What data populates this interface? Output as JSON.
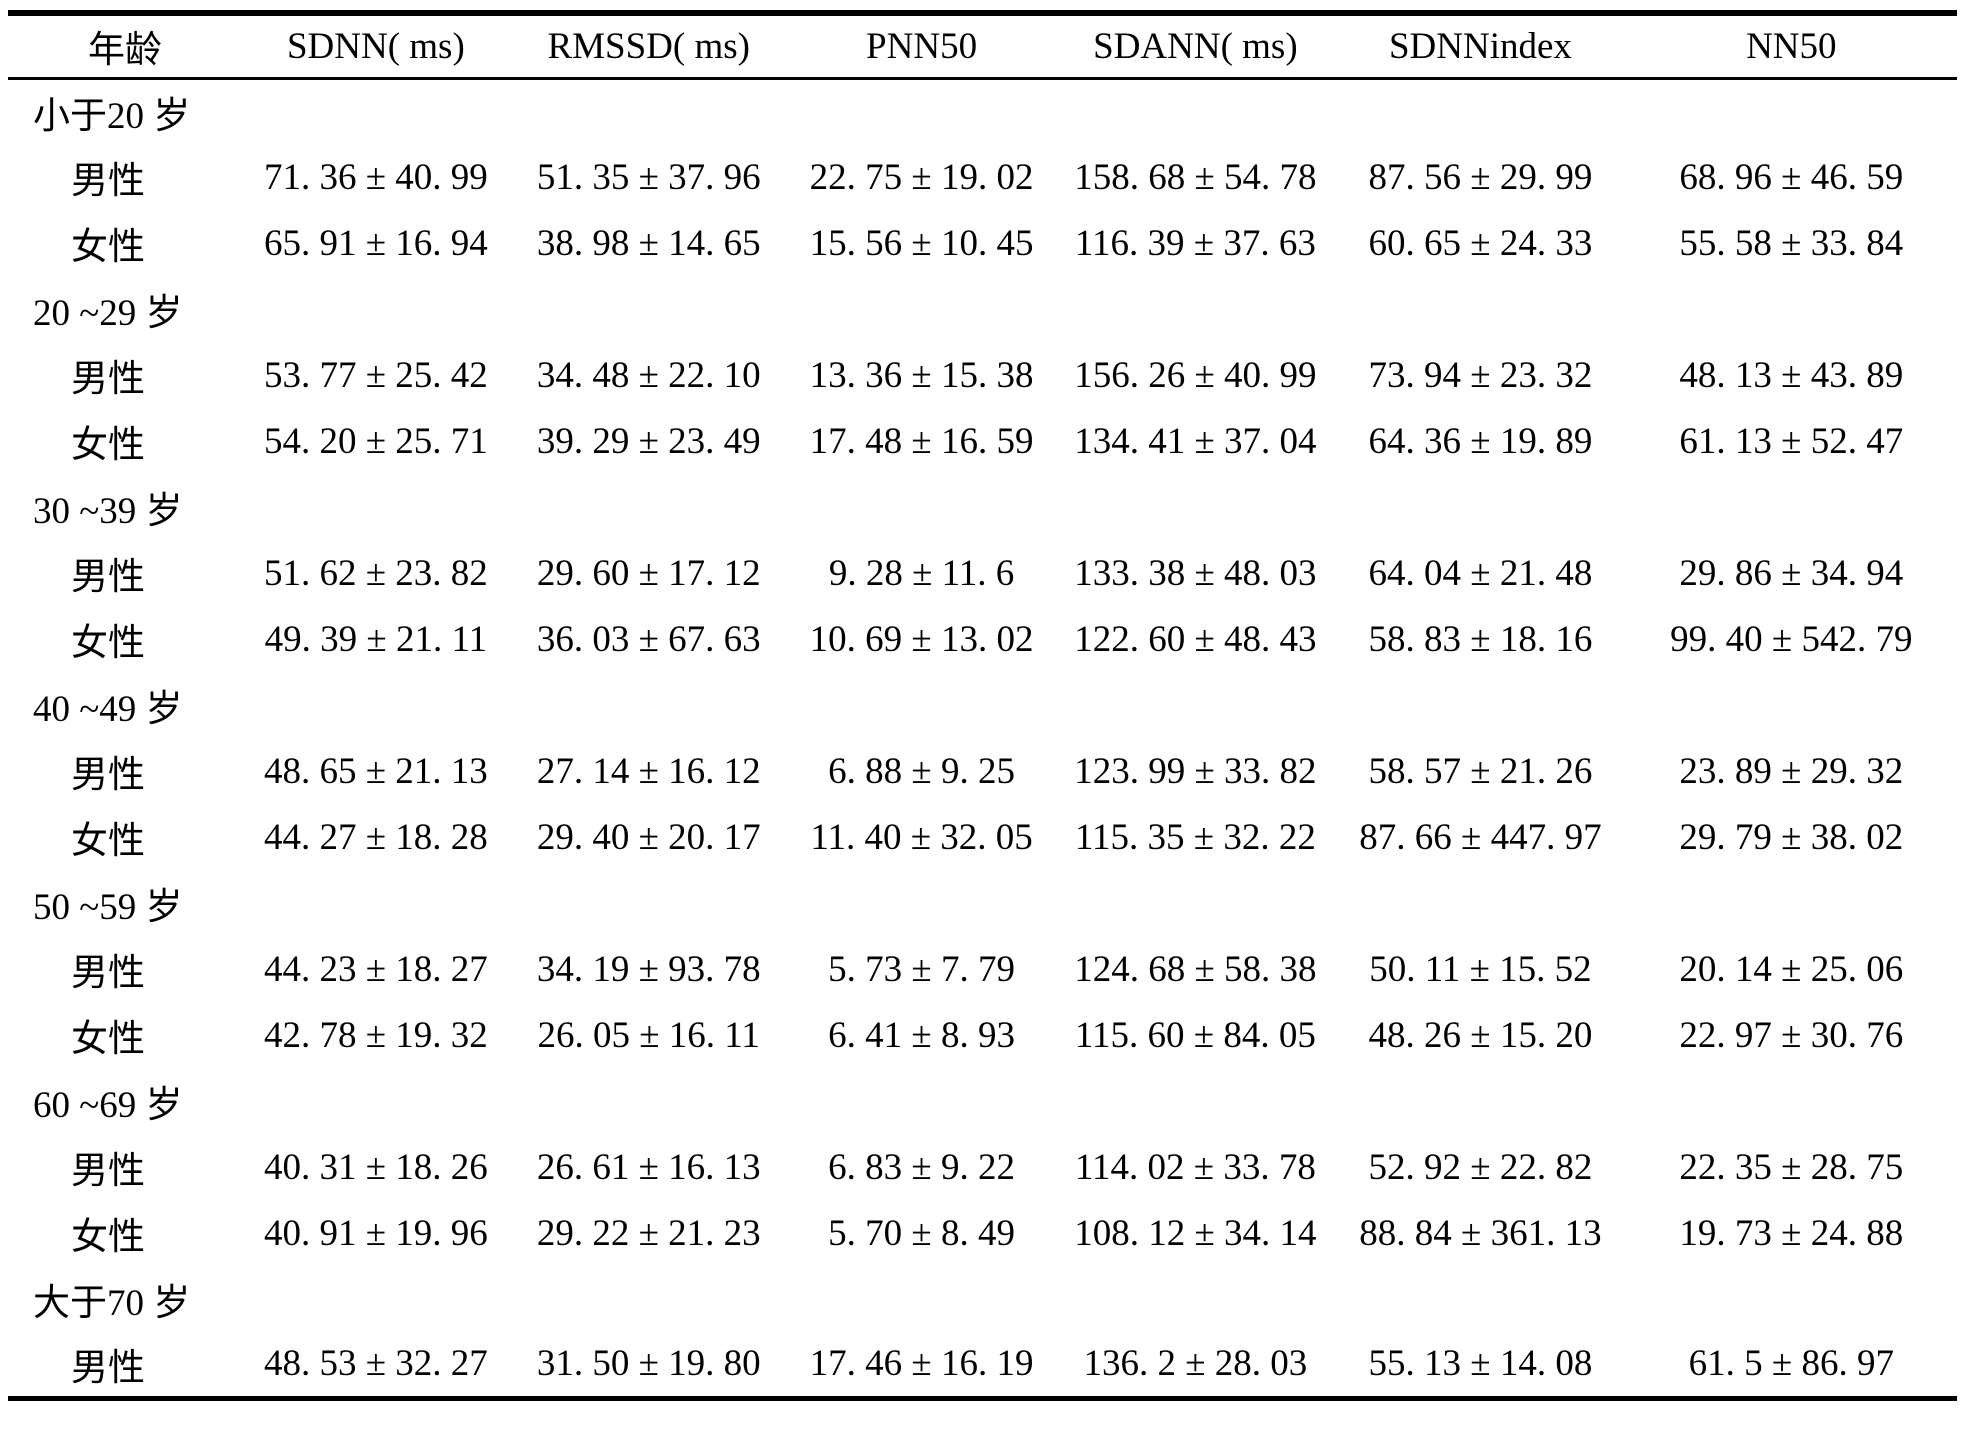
{
  "table": {
    "columns": [
      "年龄",
      "SDNN( ms)",
      "RMSSD( ms)",
      "PNN50",
      "SDANN( ms)",
      "SDNNindex",
      "NN50"
    ],
    "rows": [
      {
        "kind": "group",
        "label": "小于20 岁",
        "values": [
          "",
          "",
          "",
          "",
          "",
          ""
        ]
      },
      {
        "kind": "data",
        "label": "男性",
        "values": [
          "71. 36 ± 40. 99",
          "51. 35 ± 37. 96",
          "22. 75 ± 19. 02",
          "158. 68 ± 54. 78",
          "87. 56 ± 29. 99",
          "68. 96 ± 46. 59"
        ]
      },
      {
        "kind": "data",
        "label": "女性",
        "values": [
          "65. 91 ± 16. 94",
          "38. 98 ± 14. 65",
          "15. 56 ± 10. 45",
          "116. 39 ± 37. 63",
          "60. 65 ± 24. 33",
          "55. 58 ± 33. 84"
        ]
      },
      {
        "kind": "group",
        "label": "20 ~29 岁",
        "values": [
          "",
          "",
          "",
          "",
          "",
          ""
        ]
      },
      {
        "kind": "data",
        "label": "男性",
        "values": [
          "53. 77 ± 25. 42",
          "34. 48 ± 22. 10",
          "13. 36 ± 15. 38",
          "156. 26 ± 40. 99",
          "73. 94 ± 23. 32",
          "48. 13 ± 43. 89"
        ]
      },
      {
        "kind": "data",
        "label": "女性",
        "values": [
          "54. 20 ± 25. 71",
          "39. 29 ± 23. 49",
          "17. 48 ± 16. 59",
          "134. 41 ± 37. 04",
          "64. 36 ± 19. 89",
          "61. 13 ± 52. 47"
        ]
      },
      {
        "kind": "group",
        "label": "30 ~39 岁",
        "values": [
          "",
          "",
          "",
          "",
          "",
          ""
        ]
      },
      {
        "kind": "data",
        "label": "男性",
        "values": [
          "51. 62 ± 23. 82",
          "29. 60 ± 17. 12",
          "9. 28 ± 11. 6",
          "133. 38 ± 48. 03",
          "64. 04 ± 21. 48",
          "29. 86 ± 34. 94"
        ]
      },
      {
        "kind": "data",
        "label": "女性",
        "values": [
          "49. 39 ± 21. 11",
          "36. 03 ± 67. 63",
          "10. 69 ± 13. 02",
          "122. 60 ± 48. 43",
          "58. 83 ± 18. 16",
          "99. 40 ± 542. 79"
        ]
      },
      {
        "kind": "group",
        "label": "40 ~49 岁",
        "values": [
          "",
          "",
          "",
          "",
          "",
          ""
        ]
      },
      {
        "kind": "data",
        "label": "男性",
        "values": [
          "48. 65 ± 21. 13",
          "27. 14 ± 16. 12",
          "6. 88 ± 9. 25",
          "123. 99 ± 33. 82",
          "58. 57 ± 21. 26",
          "23. 89 ± 29. 32"
        ]
      },
      {
        "kind": "data",
        "label": "女性",
        "values": [
          "44. 27 ± 18. 28",
          "29. 40 ± 20. 17",
          "11. 40 ± 32. 05",
          "115. 35 ± 32. 22",
          "87. 66 ± 447. 97",
          "29. 79 ± 38. 02"
        ]
      },
      {
        "kind": "group",
        "label": "50 ~59 岁",
        "values": [
          "",
          "",
          "",
          "",
          "",
          ""
        ]
      },
      {
        "kind": "data",
        "label": "男性",
        "values": [
          "44. 23 ± 18. 27",
          "34. 19 ± 93. 78",
          "5. 73 ± 7. 79",
          "124. 68 ± 58. 38",
          "50. 11 ± 15. 52",
          "20. 14 ± 25. 06"
        ]
      },
      {
        "kind": "data",
        "label": "女性",
        "values": [
          "42. 78 ± 19. 32",
          "26. 05 ± 16. 11",
          "6. 41 ± 8. 93",
          "115. 60 ± 84. 05",
          "48. 26 ± 15. 20",
          "22. 97 ± 30. 76"
        ]
      },
      {
        "kind": "group",
        "label": "60 ~69 岁",
        "values": [
          "",
          "",
          "",
          "",
          "",
          ""
        ]
      },
      {
        "kind": "data",
        "label": "男性",
        "values": [
          "40. 31 ± 18. 26",
          "26. 61 ± 16. 13",
          "6. 83 ± 9. 22",
          "114. 02 ± 33. 78",
          "52. 92 ± 22. 82",
          "22. 35 ± 28. 75"
        ]
      },
      {
        "kind": "data",
        "label": "女性",
        "values": [
          "40. 91 ± 19. 96",
          "29. 22 ± 21. 23",
          "5. 70 ± 8. 49",
          "108. 12 ± 34. 14",
          "88. 84 ± 361. 13",
          "19. 73 ± 24. 88"
        ]
      },
      {
        "kind": "group",
        "label": "大于70 岁",
        "values": [
          "",
          "",
          "",
          "",
          "",
          ""
        ]
      },
      {
        "kind": "data",
        "label": "男性",
        "values": [
          "48. 53 ± 32. 27",
          "31. 50 ± 19. 80",
          "17. 46 ± 16. 19",
          "136. 2 ± 28. 03",
          "55. 13 ± 14. 08",
          "61. 5 ± 86. 97"
        ]
      }
    ]
  }
}
